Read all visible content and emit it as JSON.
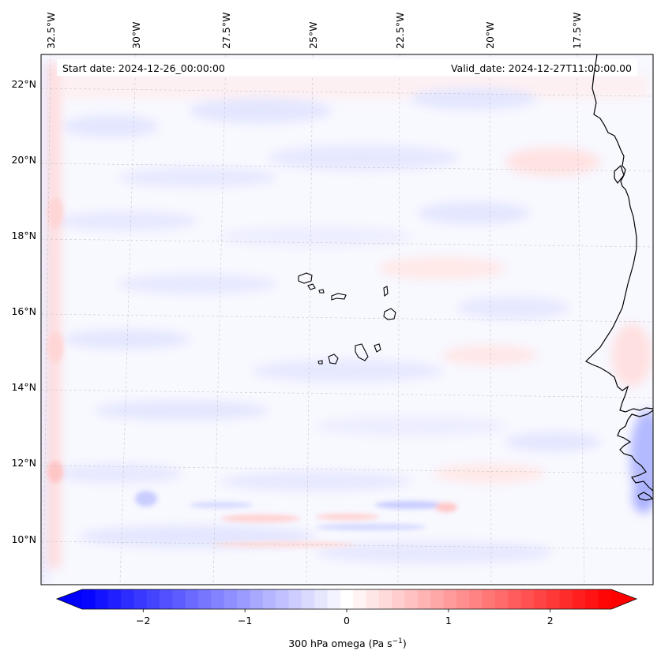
{
  "map": {
    "start_date_label": "Start date: 2024-12-26_00:00:00",
    "valid_date_label": "Valid_date: 2024-12-27T11:00:00.00",
    "lon_labels": [
      "32.5°W",
      "30°W",
      "27.5°W",
      "25°W",
      "22.5°W",
      "20°W",
      "17.5°W"
    ],
    "lat_labels": [
      "22°N",
      "20°N",
      "18°N",
      "16°N",
      "14°N",
      "12°N",
      "10°N"
    ],
    "field_colors": {
      "background": "#f8f8ff",
      "weak_ascent": "#e4e6ff",
      "moderate_ascent": "#cfd3ff",
      "strong_ascent": "#a9afff",
      "weak_descent": "#ffeaea",
      "moderate_descent": "#ffd3d3"
    },
    "coastline_color": "#000000"
  },
  "colorbar": {
    "label_main": "300 hPa omega (Pa s",
    "label_exp": "−1",
    "label_end": ")",
    "ticks": [
      "−2",
      "−1",
      "0",
      "1",
      "2"
    ],
    "tick_values": [
      -2,
      -1,
      0,
      1,
      2
    ],
    "range": [
      -2.6,
      2.6
    ],
    "levels": 41,
    "colormap": "bwr",
    "extend": "both"
  }
}
